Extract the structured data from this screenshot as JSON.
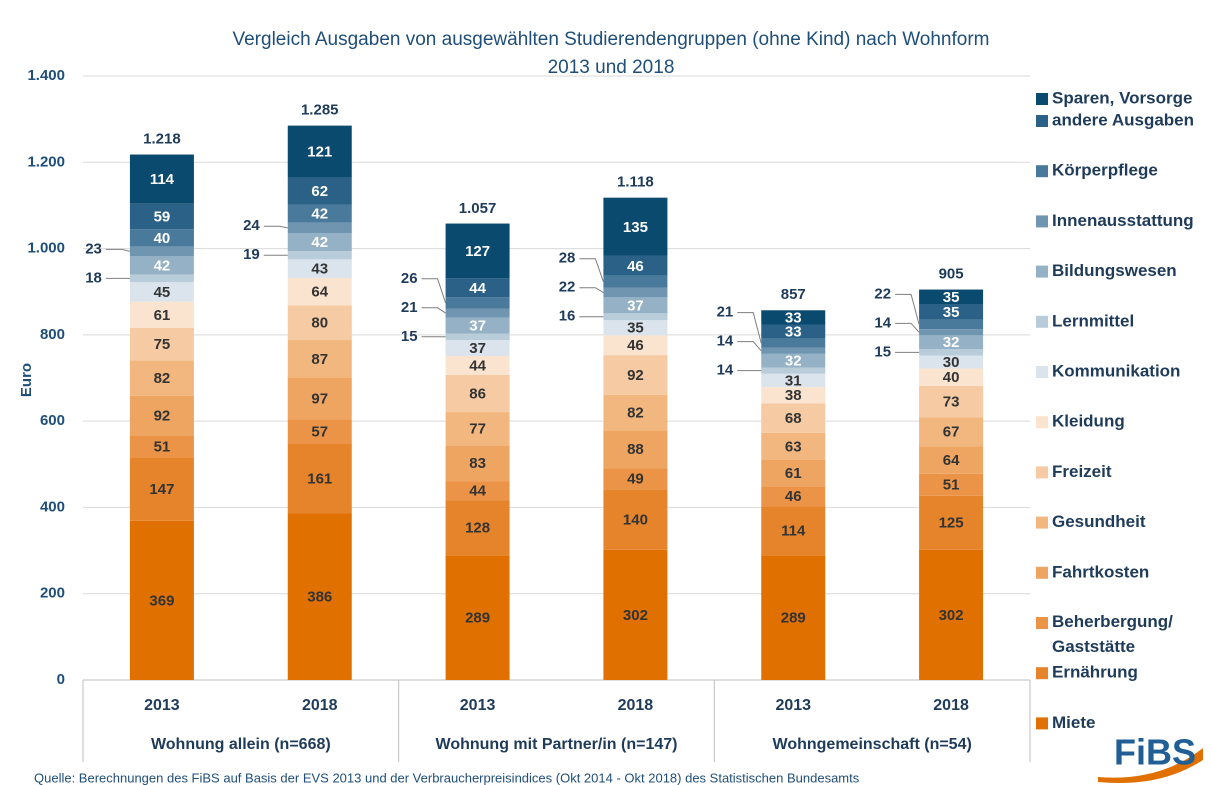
{
  "chart_data": {
    "type": "stacked_bar",
    "title": "Vergleich Ausgaben von ausgewählten Studierendengruppen (ohne Kind) nach Wohnform",
    "subtitle": "2013 und 2018",
    "y_label": "Euro",
    "categories": [
      "2013",
      "2018",
      "2013",
      "2018",
      "2013",
      "2018"
    ],
    "groups": [
      "Wohnung allein (n=668)",
      "Wohnung mit Partner/in (n=147)",
      "Wohngemeinschaft (n=54)"
    ],
    "ylim": [
      0,
      1400
    ],
    "yticks": [
      0,
      200,
      400,
      600,
      800,
      {
        "value": 1000,
        "label": "1.000"
      },
      {
        "value": 1200,
        "label": "1.200"
      },
      {
        "value": 1400,
        "label": "1.400"
      }
    ],
    "grid": true,
    "legend": "right",
    "series": [
      {
        "name": "Miete",
        "color": "#e07000",
        "values": [
          369,
          386,
          289,
          302,
          289,
          302
        ]
      },
      {
        "name": "Ernährung",
        "color": "#e6842b",
        "values": [
          147,
          161,
          128,
          140,
          114,
          125
        ]
      },
      {
        "name": "Beherbergung/Gaststätte",
        "color": "#eb9447",
        "values": [
          51,
          57,
          44,
          49,
          46,
          51
        ]
      },
      {
        "name": "Fahrtkosten",
        "color": "#eea562",
        "values": [
          92,
          97,
          83,
          88,
          61,
          64
        ]
      },
      {
        "name": "Gesundheit",
        "color": "#f2b77f",
        "values": [
          82,
          87,
          77,
          82,
          63,
          67
        ]
      },
      {
        "name": "Freizeit",
        "color": "#f6caa2",
        "values": [
          75,
          80,
          86,
          92,
          68,
          73
        ]
      },
      {
        "name": "Kleidung",
        "color": "#fbe4cf",
        "values": [
          61,
          64,
          44,
          46,
          38,
          40
        ]
      },
      {
        "name": "Kommunikation",
        "color": "#dbe4ec",
        "values": [
          45,
          43,
          37,
          35,
          31,
          30
        ]
      },
      {
        "name": "Lernmittel",
        "color": "#b9ccda",
        "values": [
          18,
          19,
          15,
          16,
          14,
          15
        ]
      },
      {
        "name": "Bildungswesen",
        "color": "#94b1c6",
        "values": [
          42,
          42,
          37,
          37,
          32,
          32
        ]
      },
      {
        "name": "Innenausstattung",
        "color": "#6f95b0",
        "values": [
          23,
          24,
          21,
          22,
          14,
          14
        ]
      },
      {
        "name": "Körperpflege",
        "color": "#4a7a9b",
        "values": [
          40,
          42,
          26,
          28,
          21,
          22
        ]
      },
      {
        "name": "andere Ausgaben",
        "color": "#2b6186",
        "values": [
          59,
          62,
          44,
          46,
          33,
          35
        ]
      },
      {
        "name": "Sparen, Vorsorge",
        "color": "#0b4a6f",
        "values": [
          114,
          121,
          127,
          135,
          33,
          35
        ]
      }
    ],
    "totals": {
      "values": [
        1218,
        1285,
        1057,
        1118,
        857,
        905
      ],
      "value_labels": [
        "1.218",
        "1.285",
        "1.057",
        "1.118",
        "857",
        "905"
      ]
    },
    "source": "Quelle: Berechnungen des FiBS auf Basis der EVS 2013 und der Verbraucherpreisindices (Okt 2014 - Okt 2018) des Statistischen Bundesamts",
    "logo": "FiBS"
  }
}
